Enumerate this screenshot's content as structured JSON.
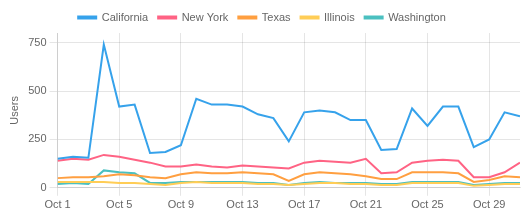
{
  "chart_data": {
    "type": "line",
    "title": "",
    "ylabel": "Users",
    "x": [
      1,
      2,
      3,
      4,
      5,
      6,
      7,
      8,
      9,
      10,
      11,
      12,
      13,
      14,
      15,
      16,
      17,
      18,
      19,
      20,
      21,
      22,
      23,
      24,
      25,
      26,
      27,
      28,
      29,
      30,
      31
    ],
    "series": [
      {
        "name": "California",
        "values": [
          150,
          160,
          155,
          740,
          420,
          430,
          180,
          185,
          220,
          460,
          430,
          430,
          420,
          380,
          360,
          240,
          390,
          400,
          390,
          350,
          350,
          195,
          200,
          410,
          320,
          420,
          420,
          210,
          250,
          390,
          370
        ]
      },
      {
        "name": "New York",
        "values": [
          140,
          150,
          145,
          170,
          160,
          145,
          130,
          110,
          110,
          120,
          110,
          105,
          115,
          110,
          105,
          100,
          130,
          140,
          135,
          130,
          150,
          75,
          80,
          130,
          140,
          145,
          140,
          55,
          55,
          80,
          130
        ]
      },
      {
        "name": "Texas",
        "values": [
          50,
          55,
          55,
          60,
          70,
          65,
          55,
          50,
          70,
          80,
          75,
          75,
          80,
          75,
          70,
          35,
          70,
          80,
          75,
          70,
          60,
          45,
          45,
          80,
          80,
          80,
          75,
          30,
          40,
          60,
          55
        ]
      },
      {
        "name": "Illinois",
        "values": [
          30,
          30,
          30,
          30,
          25,
          25,
          20,
          15,
          25,
          30,
          25,
          25,
          25,
          20,
          20,
          15,
          20,
          25,
          25,
          20,
          20,
          15,
          15,
          25,
          25,
          25,
          25,
          10,
          15,
          20,
          20
        ]
      },
      {
        "name": "Washington",
        "values": [
          20,
          25,
          20,
          90,
          80,
          75,
          25,
          25,
          30,
          30,
          30,
          30,
          30,
          25,
          25,
          15,
          25,
          30,
          25,
          25,
          25,
          20,
          20,
          30,
          30,
          30,
          30,
          15,
          20,
          25,
          25
        ]
      }
    ],
    "xlim": [
      1,
      31
    ],
    "xticks": [
      {
        "value": 1,
        "label": "Oct 1"
      },
      {
        "value": 5,
        "label": "Oct 5"
      },
      {
        "value": 9,
        "label": "Oct 9"
      },
      {
        "value": 13,
        "label": "Oct 13"
      },
      {
        "value": 17,
        "label": "Oct 17"
      },
      {
        "value": 21,
        "label": "Oct 21"
      },
      {
        "value": 25,
        "label": "Oct 25"
      },
      {
        "value": 29,
        "label": "Oct 29"
      }
    ],
    "ylim": [
      0,
      800
    ],
    "yticks": [
      0,
      250,
      500,
      750
    ],
    "grid": true,
    "legend": "top"
  }
}
